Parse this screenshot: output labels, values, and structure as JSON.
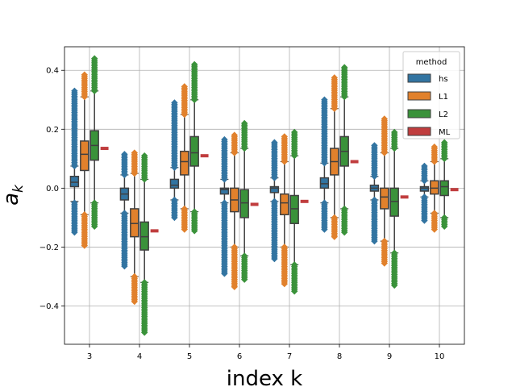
{
  "chart_data": {
    "type": "box",
    "xlabel": "index k",
    "ylabel": "a",
    "ylabel_subscript": "k",
    "categories": [
      "3",
      "4",
      "5",
      "6",
      "7",
      "8",
      "9",
      "10"
    ],
    "ylim": [
      -0.53,
      0.48
    ],
    "yticks": [
      {
        "value": 0.4,
        "label": "0.4"
      },
      {
        "value": 0.2,
        "label": "0.2"
      },
      {
        "value": 0.0,
        "label": "0.0"
      },
      {
        "value": -0.2,
        "label": "−0.2"
      },
      {
        "value": -0.4,
        "label": "−0.4"
      }
    ],
    "grid": true,
    "legend": {
      "title": "method",
      "placement": "top-right"
    },
    "series": [
      {
        "name": "hs",
        "color": "#3274a1",
        "kind": "box",
        "boxes": [
          {
            "q1": 0.005,
            "median": 0.02,
            "q3": 0.04,
            "whislo": -0.045,
            "whishi": 0.075,
            "fliers_low": [
              -0.15,
              -0.05
            ],
            "fliers_high": [
              0.075,
              0.33
            ]
          },
          {
            "q1": -0.04,
            "median": -0.02,
            "q3": 0.0,
            "whislo": -0.085,
            "whishi": 0.045,
            "fliers_low": [
              -0.265,
              -0.085
            ],
            "fliers_high": [
              0.045,
              0.115
            ]
          },
          {
            "q1": 0.0,
            "median": 0.01,
            "q3": 0.03,
            "whislo": -0.04,
            "whishi": 0.07,
            "fliers_low": [
              -0.1,
              -0.04
            ],
            "fliers_high": [
              0.07,
              0.29
            ]
          },
          {
            "q1": -0.02,
            "median": -0.005,
            "q3": 0.0,
            "whislo": -0.05,
            "whishi": 0.03,
            "fliers_low": [
              -0.29,
              -0.05
            ],
            "fliers_high": [
              0.03,
              0.165
            ]
          },
          {
            "q1": -0.015,
            "median": 0.0,
            "q3": 0.005,
            "whislo": -0.045,
            "whishi": 0.035,
            "fliers_low": [
              -0.24,
              -0.045
            ],
            "fliers_high": [
              0.035,
              0.155
            ]
          },
          {
            "q1": 0.0,
            "median": 0.015,
            "q3": 0.035,
            "whislo": -0.05,
            "whishi": 0.085,
            "fliers_low": [
              -0.14,
              -0.05
            ],
            "fliers_high": [
              0.085,
              0.3
            ]
          },
          {
            "q1": -0.01,
            "median": 0.0,
            "q3": 0.01,
            "whislo": -0.04,
            "whishi": 0.04,
            "fliers_low": [
              -0.18,
              -0.04
            ],
            "fliers_high": [
              0.04,
              0.145
            ]
          },
          {
            "q1": -0.01,
            "median": 0.0,
            "q3": 0.005,
            "whislo": -0.03,
            "whishi": 0.025,
            "fliers_low": [
              -0.11,
              -0.03
            ],
            "fliers_high": [
              0.025,
              0.075
            ]
          }
        ]
      },
      {
        "name": "L1",
        "color": "#e1812c",
        "kind": "box",
        "boxes": [
          {
            "q1": 0.06,
            "median": 0.115,
            "q3": 0.16,
            "whislo": -0.09,
            "whishi": 0.31,
            "fliers_low": [
              -0.195,
              -0.09
            ],
            "fliers_high": [
              0.31,
              0.385
            ]
          },
          {
            "q1": -0.165,
            "median": -0.12,
            "q3": -0.07,
            "whislo": -0.3,
            "whishi": 0.05,
            "fliers_low": [
              -0.385,
              -0.3
            ],
            "fliers_high": [
              0.05,
              0.12
            ]
          },
          {
            "q1": 0.045,
            "median": 0.09,
            "q3": 0.125,
            "whislo": -0.07,
            "whishi": 0.25,
            "fliers_low": [
              -0.14,
              -0.07
            ],
            "fliers_high": [
              0.25,
              0.345
            ]
          },
          {
            "q1": -0.08,
            "median": -0.04,
            "q3": 0.0,
            "whislo": -0.2,
            "whishi": 0.12,
            "fliers_low": [
              -0.335,
              -0.2
            ],
            "fliers_high": [
              0.12,
              0.18
            ]
          },
          {
            "q1": -0.09,
            "median": -0.05,
            "q3": -0.02,
            "whislo": -0.2,
            "whishi": 0.09,
            "fliers_low": [
              -0.325,
              -0.2
            ],
            "fliers_high": [
              0.09,
              0.175
            ]
          },
          {
            "q1": 0.045,
            "median": 0.09,
            "q3": 0.135,
            "whislo": -0.1,
            "whishi": 0.27,
            "fliers_low": [
              -0.165,
              -0.1
            ],
            "fliers_high": [
              0.27,
              0.375
            ]
          },
          {
            "q1": -0.07,
            "median": -0.03,
            "q3": 0.0,
            "whislo": -0.18,
            "whishi": 0.12,
            "fliers_low": [
              -0.255,
              -0.18
            ],
            "fliers_high": [
              0.12,
              0.235
            ]
          },
          {
            "q1": -0.02,
            "median": 0.0,
            "q3": 0.025,
            "whislo": -0.085,
            "whishi": 0.09,
            "fliers_low": [
              -0.14,
              -0.085
            ],
            "fliers_high": [
              0.09,
              0.14
            ]
          }
        ]
      },
      {
        "name": "L2",
        "color": "#3a923a",
        "kind": "box",
        "boxes": [
          {
            "q1": 0.095,
            "median": 0.145,
            "q3": 0.195,
            "whislo": -0.05,
            "whishi": 0.33,
            "fliers_low": [
              -0.13,
              -0.05
            ],
            "fliers_high": [
              0.33,
              0.44
            ]
          },
          {
            "q1": -0.21,
            "median": -0.165,
            "q3": -0.115,
            "whislo": -0.32,
            "whishi": 0.03,
            "fliers_low": [
              -0.49,
              -0.32
            ],
            "fliers_high": [
              0.03,
              0.11
            ]
          },
          {
            "q1": 0.075,
            "median": 0.12,
            "q3": 0.175,
            "whislo": -0.08,
            "whishi": 0.3,
            "fliers_low": [
              -0.145,
              -0.08
            ],
            "fliers_high": [
              0.3,
              0.42
            ]
          },
          {
            "q1": -0.1,
            "median": -0.05,
            "q3": -0.005,
            "whislo": -0.23,
            "whishi": 0.135,
            "fliers_low": [
              -0.31,
              -0.23
            ],
            "fliers_high": [
              0.135,
              0.22
            ]
          },
          {
            "q1": -0.12,
            "median": -0.07,
            "q3": -0.025,
            "whislo": -0.26,
            "whishi": 0.11,
            "fliers_low": [
              -0.35,
              -0.26
            ],
            "fliers_high": [
              0.11,
              0.19
            ]
          },
          {
            "q1": 0.075,
            "median": 0.125,
            "q3": 0.175,
            "whislo": -0.07,
            "whishi": 0.31,
            "fliers_low": [
              -0.15,
              -0.07
            ],
            "fliers_high": [
              0.31,
              0.41
            ]
          },
          {
            "q1": -0.095,
            "median": -0.045,
            "q3": 0.0,
            "whislo": -0.22,
            "whishi": 0.135,
            "fliers_low": [
              -0.33,
              -0.22
            ],
            "fliers_high": [
              0.135,
              0.19
            ]
          },
          {
            "q1": -0.025,
            "median": 0.005,
            "q3": 0.025,
            "whislo": -0.1,
            "whishi": 0.1,
            "fliers_low": [
              -0.13,
              -0.1
            ],
            "fliers_high": [
              0.1,
              0.155
            ]
          }
        ]
      },
      {
        "name": "ML",
        "color": "#c03d3e",
        "kind": "line",
        "values": [
          0.135,
          -0.145,
          0.11,
          -0.055,
          -0.045,
          0.09,
          -0.03,
          -0.005
        ]
      }
    ]
  }
}
